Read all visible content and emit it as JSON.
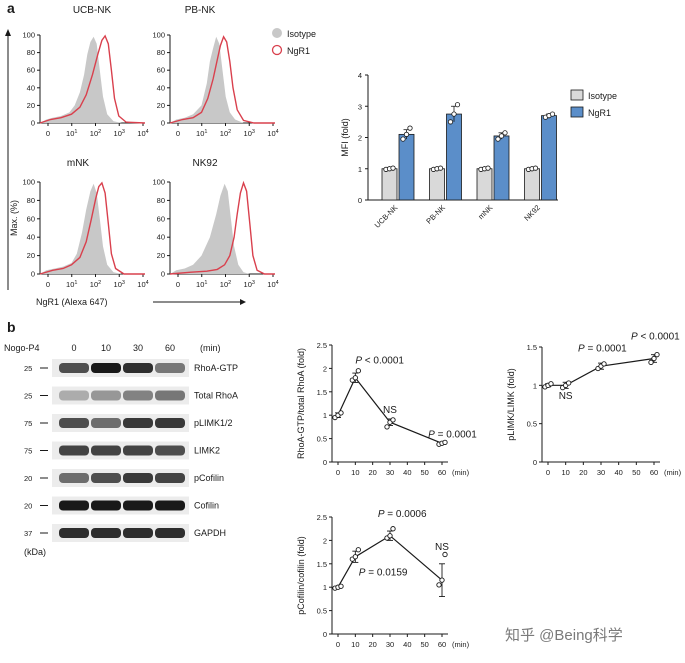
{
  "panel_labels": {
    "a": "a",
    "b": "b"
  },
  "flow": {
    "titles": [
      "UCB-NK",
      "PB-NK",
      "mNK",
      "NK92"
    ],
    "y_axis_label": "Max. (%)",
    "x_axis_label": "NgR1 (Alexa 647)",
    "y_ticks": [
      "0",
      "20",
      "40",
      "60",
      "80",
      "100"
    ],
    "x_tick_base": [
      "0",
      "10",
      "10",
      "10",
      "10"
    ],
    "x_tick_exp": [
      "",
      "1",
      "2",
      "3",
      "4"
    ],
    "legend": {
      "isotype": "Isotype",
      "ngr1": "NgR1"
    },
    "colors": {
      "isotype": "#c8c8c8",
      "ngr1": "#d9404d"
    }
  },
  "blot": {
    "treatment": "Nogo-P4",
    "timepoints": [
      "0",
      "10",
      "30",
      "60"
    ],
    "unit": "(min)",
    "mw_unit": "(kDa)",
    "rows": [
      {
        "mw": "25",
        "protein": "RhoA-GTP",
        "intensity": [
          0.75,
          1.0,
          0.9,
          0.55
        ]
      },
      {
        "mw": "25",
        "protein": "Total RhoA",
        "intensity": [
          0.3,
          0.4,
          0.5,
          0.55
        ]
      },
      {
        "mw": "75",
        "protein": "pLIMK1/2",
        "intensity": [
          0.75,
          0.6,
          0.85,
          0.85
        ]
      },
      {
        "mw": "75",
        "protein": "LIMK2",
        "intensity": [
          0.8,
          0.8,
          0.8,
          0.75
        ]
      },
      {
        "mw": "20",
        "protein": "pCofilin",
        "intensity": [
          0.6,
          0.75,
          0.85,
          0.8
        ]
      },
      {
        "mw": "20",
        "protein": "Cofilin",
        "intensity": [
          1.0,
          1.0,
          1.0,
          1.0
        ]
      },
      {
        "mw": "37",
        "protein": "GAPDH",
        "intensity": [
          0.9,
          0.9,
          0.9,
          0.9
        ]
      }
    ]
  },
  "watermark": "知乎 @Being科学",
  "chart_data": [
    {
      "type": "bar",
      "id": "mfi",
      "categories": [
        "UCB-NK",
        "PB-NK",
        "mNK",
        "NK92"
      ],
      "series": [
        {
          "name": "Isotype",
          "color": "#d9d9d9",
          "values": [
            1.0,
            1.0,
            1.0,
            1.0
          ],
          "errors": [
            0.03,
            0.03,
            0.03,
            0.03
          ],
          "points": [
            [
              0.98,
              1.0,
              1.02
            ],
            [
              0.98,
              1.0,
              1.02
            ],
            [
              0.98,
              1.0,
              1.02
            ],
            [
              0.98,
              1.0,
              1.02
            ]
          ]
        },
        {
          "name": "NgR1",
          "color": "#5b8ec9",
          "values": [
            2.1,
            2.75,
            2.05,
            2.7
          ],
          "errors": [
            0.15,
            0.25,
            0.1,
            0.05
          ],
          "points": [
            [
              1.95,
              2.1,
              2.3
            ],
            [
              2.5,
              2.75,
              3.05
            ],
            [
              1.95,
              2.05,
              2.15
            ],
            [
              2.65,
              2.7,
              2.75
            ]
          ]
        }
      ],
      "ylabel": "MFI (fold)",
      "ylim": [
        0,
        4
      ],
      "yticks": [
        0,
        1,
        2,
        3,
        4
      ]
    },
    {
      "type": "line",
      "id": "rhoa",
      "ylabel": "RhoA-GTP/total RhoA (fold)",
      "x": [
        0,
        10,
        30,
        60
      ],
      "xticks": [
        0,
        10,
        20,
        30,
        40,
        50,
        60
      ],
      "xunit": "(min)",
      "means": [
        1.0,
        1.8,
        0.85,
        0.4
      ],
      "errors": [
        0.05,
        0.1,
        0.07,
        0.02
      ],
      "points": [
        [
          0.95,
          1.0,
          1.05
        ],
        [
          1.75,
          1.8,
          1.95
        ],
        [
          0.75,
          0.85,
          0.9
        ],
        [
          0.38,
          0.4,
          0.42
        ]
      ],
      "ylim": [
        0,
        2.5
      ],
      "yticks": [
        0,
        0.5,
        1.0,
        1.5,
        2.0,
        2.5
      ],
      "annotations": [
        {
          "italic": "P",
          "text": " < 0.0001",
          "x": 10,
          "y": 2.1,
          "anchor": "start"
        },
        {
          "italic": "",
          "text": "NS",
          "x": 30,
          "y": 1.05,
          "anchor": "middle"
        },
        {
          "italic": "P",
          "text": " = 0.0001",
          "x": 52,
          "y": 0.52,
          "anchor": "start"
        }
      ]
    },
    {
      "type": "line",
      "id": "plimk",
      "ylabel": "pLIMK/LIMK (fold)",
      "x": [
        0,
        10,
        30,
        60
      ],
      "xticks": [
        0,
        10,
        20,
        30,
        40,
        50,
        60
      ],
      "xunit": "(min)",
      "means": [
        1.0,
        1.0,
        1.25,
        1.35
      ],
      "errors": [
        0.02,
        0.04,
        0.04,
        0.05
      ],
      "points": [
        [
          0.98,
          1.0,
          1.02
        ],
        [
          0.97,
          1.0,
          1.03
        ],
        [
          1.22,
          1.25,
          1.28
        ],
        [
          1.3,
          1.35,
          1.4
        ]
      ],
      "ylim": [
        0,
        1.5
      ],
      "yticks": [
        0,
        0.5,
        1.0,
        1.5
      ],
      "annotations": [
        {
          "italic": "",
          "text": "NS",
          "x": 10,
          "y": 0.82,
          "anchor": "middle"
        },
        {
          "italic": "P",
          "text": " = 0.0001",
          "x": 17,
          "y": 1.44,
          "anchor": "start"
        },
        {
          "italic": "P",
          "text": " < 0.0001",
          "x": 47,
          "y": 1.6,
          "anchor": "start"
        }
      ]
    },
    {
      "type": "line",
      "id": "pcof",
      "ylabel": "pCofilin/cofilin (fold)",
      "x": [
        0,
        10,
        30,
        60
      ],
      "xticks": [
        0,
        10,
        20,
        30,
        40,
        50,
        60
      ],
      "xunit": "(min)",
      "means": [
        1.0,
        1.65,
        2.1,
        1.15
      ],
      "errors": [
        0.02,
        0.12,
        0.1,
        0.35
      ],
      "points": [
        [
          0.98,
          1.0,
          1.02
        ],
        [
          1.6,
          1.65,
          1.8
        ],
        [
          2.05,
          2.1,
          2.25
        ],
        [
          1.05,
          1.15,
          1.7
        ]
      ],
      "ylim": [
        0,
        2.5
      ],
      "yticks": [
        0,
        0.5,
        1.0,
        1.5,
        2.0,
        2.5
      ],
      "annotations": [
        {
          "italic": "P",
          "text": " = 0.0006",
          "x": 23,
          "y": 2.5,
          "anchor": "start"
        },
        {
          "italic": "P",
          "text": " = 0.0159",
          "x": 12,
          "y": 1.25,
          "anchor": "start"
        },
        {
          "italic": "",
          "text": "NS",
          "x": 60,
          "y": 1.8,
          "anchor": "middle"
        }
      ]
    }
  ]
}
